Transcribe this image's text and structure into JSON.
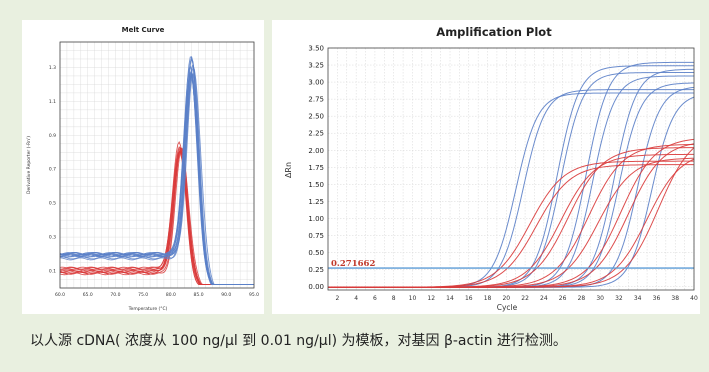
{
  "caption": "以人源 cDNA( 浓度从 100 ng/μl 到 0.01 ng/μl) 为模板，对基因 β-actin 进行检测。",
  "chart_data": [
    {
      "type": "line",
      "title": "Melt Curve",
      "xlabel": "Temperature (°C)",
      "ylabel": "Derivative Reporter (-Rn')",
      "xlim": [
        60.0,
        95.0
      ],
      "ylim": [
        0.0,
        1.45
      ],
      "x_ticks": [
        "60.0",
        "65.0",
        "70.0",
        "75.0",
        "80.0",
        "85.0",
        "90.0",
        "95.0"
      ],
      "y_ticks": [
        "0.1",
        "0.3",
        "0.5",
        "0.7",
        "0.9",
        "1.1",
        "1.3"
      ],
      "grid": true,
      "series": [
        {
          "color": "#d93a3a",
          "count": 10,
          "peak_x": 81.8,
          "peak_y": [
            0.8,
            0.87
          ],
          "baseline_y": [
            0.08,
            0.12
          ]
        },
        {
          "color": "#5b80c8",
          "count": 12,
          "peak_x": 83.8,
          "peak_y": [
            1.24,
            1.42
          ],
          "baseline_y": [
            0.17,
            0.21
          ]
        }
      ]
    },
    {
      "type": "line",
      "title": "Amplification Plot",
      "xlabel": "Cycle",
      "ylabel": "ΔRn",
      "xlim": [
        1,
        40
      ],
      "ylim": [
        -0.05,
        3.5
      ],
      "x_ticks": [
        "2",
        "4",
        "6",
        "8",
        "10",
        "12",
        "14",
        "16",
        "18",
        "20",
        "22",
        "24",
        "26",
        "28",
        "30",
        "32",
        "34",
        "36",
        "38",
        "40"
      ],
      "y_ticks": [
        "0.00",
        "0.25",
        "0.50",
        "0.75",
        "1.00",
        "1.25",
        "1.50",
        "1.75",
        "2.00",
        "2.25",
        "2.50",
        "2.75",
        "3.00",
        "3.25",
        "3.50"
      ],
      "grid": true,
      "threshold": {
        "value": 0.271662,
        "label": "0.271662"
      },
      "series": [
        {
          "color": "#5b80c8",
          "midpoints": [
            21.0,
            21.8,
            25.4,
            25.8,
            28.5,
            29.2,
            31.5,
            32.0,
            34.0,
            35.5
          ],
          "plateaus": [
            2.85,
            2.9,
            3.25,
            3.15,
            3.3,
            3.1,
            3.2,
            3.0,
            2.95,
            2.85
          ]
        },
        {
          "color": "#d93a3a",
          "midpoints": [
            22.5,
            23.2,
            25.8,
            26.6,
            28.8,
            29.8,
            32.2,
            33.0,
            35.0,
            36.2
          ],
          "plateaus": [
            1.85,
            1.8,
            1.95,
            2.05,
            2.1,
            1.9,
            2.2,
            2.15,
            2.0,
            2.3
          ]
        }
      ]
    }
  ]
}
